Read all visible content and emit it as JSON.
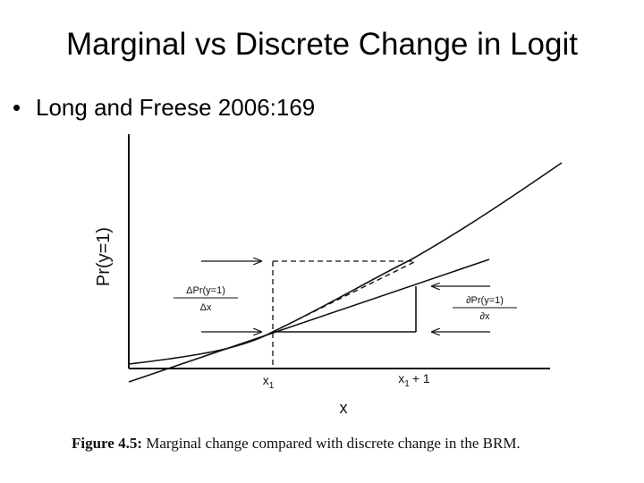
{
  "slide": {
    "title": "Marginal vs Discrete Change in Logit",
    "bullet": "Long and Freese 2006:169"
  },
  "figure": {
    "ylabel": "Pr(y=1)",
    "xlabel": "x",
    "x1_label": "x",
    "x1_sub": "1",
    "x1p1_label": "x",
    "x1p1_sub": "1",
    "x1p1_suffix": "+ 1",
    "discrete_num": "ΔPr(y=1)",
    "discrete_den": "Δx",
    "marginal_num": "∂Pr(y=1)",
    "marginal_den": "∂x",
    "caption_label": "Figure 4.5:",
    "caption_text": "Marginal change compared with discrete change in the BRM."
  }
}
